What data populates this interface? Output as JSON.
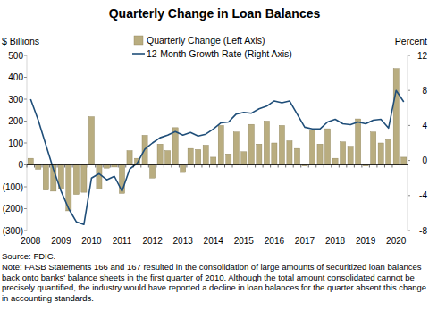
{
  "chart_data": {
    "type": "bar",
    "title": "Quarterly Change in Loan Balances",
    "y_label": "$ Billions",
    "y2_label": "Percent",
    "categories": [
      "2008",
      null,
      null,
      null,
      "2009",
      null,
      null,
      null,
      "2010",
      null,
      null,
      null,
      "2011",
      null,
      null,
      null,
      "2012",
      null,
      null,
      null,
      "2013",
      null,
      null,
      null,
      "2014",
      null,
      null,
      null,
      "2015",
      null,
      null,
      null,
      "2016",
      null,
      null,
      null,
      "2017",
      null,
      null,
      null,
      "2018",
      null,
      null,
      null,
      "2019",
      null,
      null,
      null,
      "2020",
      null
    ],
    "series": [
      {
        "name": "Quarterly Change (Left Axis)",
        "type": "bar",
        "color": "#b9ad80",
        "values": [
          30,
          -20,
          -115,
          -120,
          -110,
          -210,
          -135,
          -125,
          220,
          -110,
          -15,
          -10,
          -130,
          65,
          30,
          135,
          -60,
          95,
          65,
          170,
          -35,
          75,
          70,
          90,
          35,
          180,
          50,
          150,
          60,
          185,
          95,
          200,
          100,
          180,
          110,
          75,
          -5,
          160,
          95,
          165,
          30,
          105,
          85,
          210,
          -5,
          150,
          100,
          115,
          440,
          35
        ]
      },
      {
        "name": "12-Month Growth Rate (Right Axis)",
        "type": "line",
        "color": "#1f4e79",
        "axis": "y2",
        "values": [
          7.0,
          4.6,
          1.8,
          -1.0,
          -3.5,
          -5.5,
          -7.0,
          -7.3,
          -2.0,
          -1.5,
          -2.2,
          -1.8,
          -3.5,
          -1.0,
          -0.3,
          1.3,
          2.0,
          2.6,
          2.9,
          3.3,
          2.9,
          3.2,
          2.8,
          3.0,
          3.6,
          4.3,
          4.4,
          5.3,
          5.5,
          5.4,
          5.9,
          6.2,
          6.8,
          6.6,
          6.8,
          5.3,
          3.8,
          3.6,
          3.6,
          4.4,
          4.7,
          4.2,
          4.1,
          4.4,
          4.2,
          4.6,
          4.7,
          3.7,
          8.0,
          6.7
        ]
      }
    ],
    "ylim": [
      -300,
      500
    ],
    "yticks": [
      {
        "value": -300,
        "label": "(300)"
      },
      {
        "value": -200,
        "label": "(200)"
      },
      {
        "value": -100,
        "label": "(100)"
      },
      0,
      100,
      200,
      300,
      400,
      500
    ],
    "y2lim": [
      -8,
      12
    ],
    "y2ticks": [
      -8,
      -4,
      0,
      4,
      8,
      12
    ],
    "legend": "top-left",
    "grid": false,
    "source": "Source: FDIC.",
    "notes": [
      "Note: FASB Statements 166 and 167 resulted in the consolidation of large amounts of securitized loan balances",
      "back onto banks' balance sheets in the first quarter of 2010.  Although the total amount consolidated cannot be",
      "precisely quantified, the industry would have reported a decline in loan balances for the quarter absent this change",
      "in accounting standards."
    ]
  }
}
